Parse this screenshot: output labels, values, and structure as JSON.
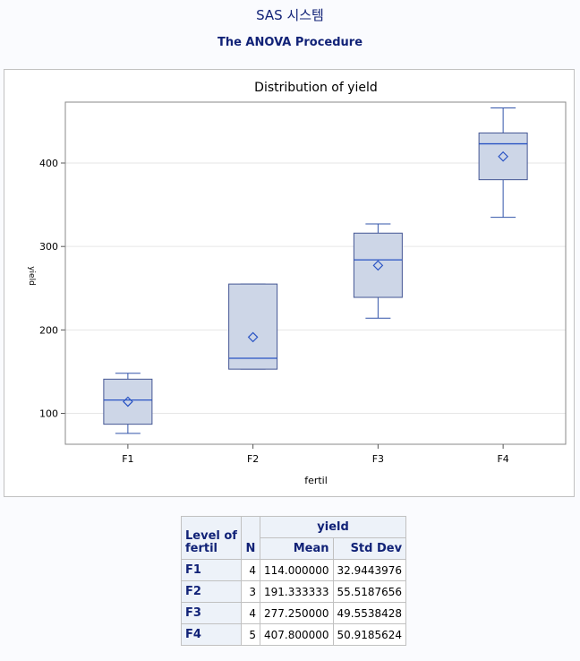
{
  "header": {
    "system_title": "SAS 시스템",
    "procedure_title": "The ANOVA Procedure"
  },
  "chart_data": {
    "type": "box",
    "title": "Distribution of yield",
    "xlabel": "fertil",
    "ylabel": "yield",
    "categories": [
      "F1",
      "F2",
      "F3",
      "F4"
    ],
    "yticks": [
      100,
      200,
      300,
      400
    ],
    "ylim": [
      63,
      473
    ],
    "grid": true,
    "boxes": [
      {
        "category": "F1",
        "min": 76,
        "q1": 87,
        "median": 116,
        "q3": 141,
        "max": 148,
        "mean": 114.0
      },
      {
        "category": "F2",
        "min": 153,
        "q1": 153,
        "median": 166,
        "q3": 255,
        "max": 255,
        "mean": 191.33
      },
      {
        "category": "F3",
        "min": 214,
        "q1": 239,
        "median": 284,
        "q3": 316,
        "max": 327,
        "mean": 277.25
      },
      {
        "category": "F4",
        "min": 335,
        "q1": 380,
        "median": 423,
        "q3": 436,
        "max": 466,
        "mean": 407.8
      }
    ],
    "colors": {
      "box_fill": "#cdd6e7",
      "box_stroke": "#445694",
      "median": "#2a54c4",
      "whisker": "#3355aa",
      "mean_marker": "#2a54c4",
      "grid": "#e6e6e6"
    }
  },
  "table": {
    "group_header": "yield",
    "columns": {
      "level": "Level of fertil",
      "n": "N",
      "mean": "Mean",
      "sd": "Std Dev"
    },
    "rows": [
      {
        "level": "F1",
        "n": "4",
        "mean": "114.000000",
        "sd": "32.9443976"
      },
      {
        "level": "F2",
        "n": "3",
        "mean": "191.333333",
        "sd": "55.5187656"
      },
      {
        "level": "F3",
        "n": "4",
        "mean": "277.250000",
        "sd": "49.5538428"
      },
      {
        "level": "F4",
        "n": "5",
        "mean": "407.800000",
        "sd": "50.9185624"
      }
    ]
  }
}
